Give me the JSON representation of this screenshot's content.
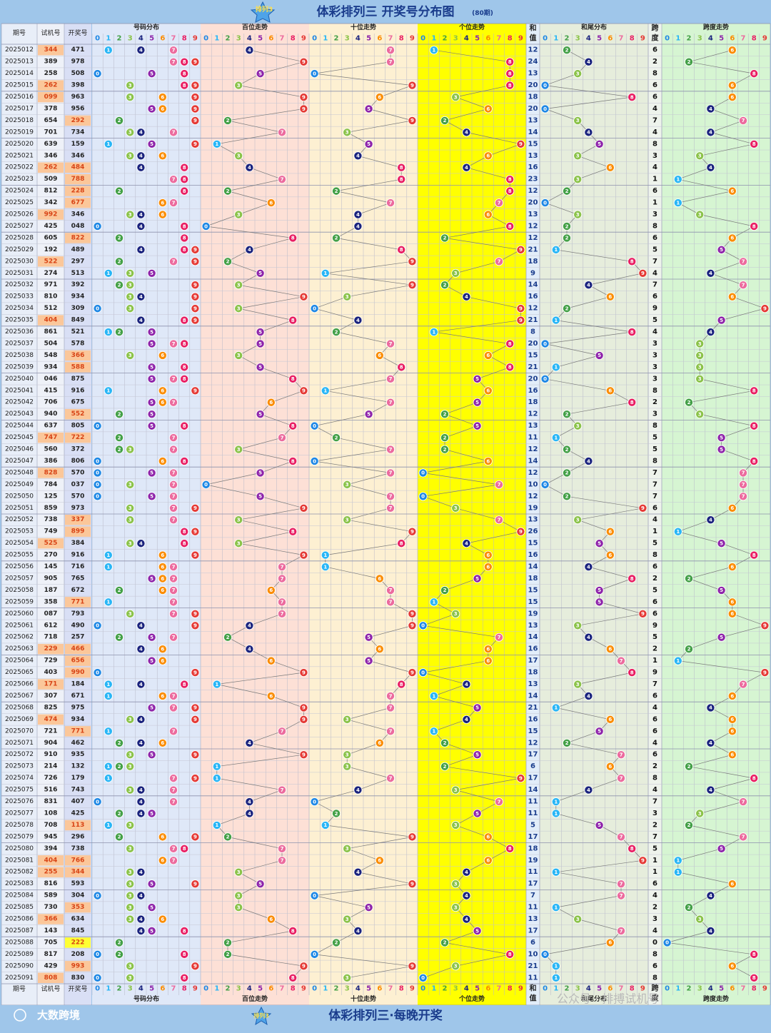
{
  "header": {
    "title": "体彩排列三 开奖号分布图",
    "period_note": "(80期)",
    "logo_text": "排列3"
  },
  "footer": {
    "title": "体彩排列三·每晚开奖",
    "brand": "大数跨境",
    "watermark": "公众号 · 排搏试机号"
  },
  "columns": {
    "issue": "期号",
    "trial": "试机号",
    "draw": "开奖号",
    "sections": [
      "号码分布",
      "百位走势",
      "十位走势",
      "个位走势",
      "和值",
      "和尾分布",
      "跨度",
      "跨度走势"
    ],
    "sum_label_top": "和",
    "sum_label_bottom": "值",
    "span_label_top": "跨",
    "span_label_bottom": "度",
    "digits": [
      "0",
      "1",
      "2",
      "3",
      "4",
      "5",
      "6",
      "7",
      "8",
      "9"
    ]
  },
  "colors": {
    "bg_outer": "#9fc6ea",
    "dist_bg": "#dfe8f8",
    "hund_bg": "#fde0d6",
    "tens_bg": "#fdf0d2",
    "ones_bg": "#ffff00",
    "sum_bg": "#e2edf9",
    "tail_bg": "#e6eddc",
    "spanwalk_bg": "#d6f5d2",
    "trial_hi": "#fbc79a",
    "draw_hi": "#fbc79a",
    "draw_repeat": "#ffff33",
    "ball_colors": [
      "#1e88e5",
      "#29b6f6",
      "#43a047",
      "#8bc34a",
      "#1a237e",
      "#8e24aa",
      "#fb8c00",
      "#ec6b9e",
      "#e91e63",
      "#e53935"
    ]
  },
  "chart_data": {
    "type": "table",
    "rows": [
      {
        "issue": "2025012",
        "trial": "344",
        "draw": "471",
        "trial_hi": true,
        "draw_hi": false,
        "sum": 12,
        "span": 6
      },
      {
        "issue": "2025013",
        "trial": "389",
        "draw": "978",
        "trial_hi": false,
        "draw_hi": false,
        "sum": 24,
        "span": 2
      },
      {
        "issue": "2025014",
        "trial": "258",
        "draw": "508",
        "trial_hi": false,
        "draw_hi": false,
        "sum": 13,
        "span": 8
      },
      {
        "issue": "2025015",
        "trial": "262",
        "draw": "398",
        "trial_hi": true,
        "draw_hi": false,
        "sum": 20,
        "span": 6
      },
      {
        "issue": "2025016",
        "trial": "099",
        "draw": "963",
        "trial_hi": true,
        "draw_hi": false,
        "sum": 18,
        "span": 6
      },
      {
        "issue": "2025017",
        "trial": "378",
        "draw": "956",
        "trial_hi": false,
        "draw_hi": false,
        "sum": 20,
        "span": 4
      },
      {
        "issue": "2025018",
        "trial": "654",
        "draw": "292",
        "trial_hi": false,
        "draw_hi": true,
        "sum": 13,
        "span": 7
      },
      {
        "issue": "2025019",
        "trial": "701",
        "draw": "734",
        "trial_hi": false,
        "draw_hi": false,
        "sum": 14,
        "span": 4
      },
      {
        "issue": "2025020",
        "trial": "639",
        "draw": "159",
        "trial_hi": false,
        "draw_hi": false,
        "sum": 15,
        "span": 8
      },
      {
        "issue": "2025021",
        "trial": "346",
        "draw": "346",
        "trial_hi": false,
        "draw_hi": false,
        "sum": 13,
        "span": 3
      },
      {
        "issue": "2025022",
        "trial": "262",
        "draw": "484",
        "trial_hi": true,
        "draw_hi": true,
        "sum": 16,
        "span": 4
      },
      {
        "issue": "2025023",
        "trial": "509",
        "draw": "788",
        "trial_hi": false,
        "draw_hi": true,
        "sum": 23,
        "span": 1
      },
      {
        "issue": "2025024",
        "trial": "812",
        "draw": "228",
        "trial_hi": false,
        "draw_hi": true,
        "sum": 12,
        "span": 6
      },
      {
        "issue": "2025025",
        "trial": "342",
        "draw": "677",
        "trial_hi": false,
        "draw_hi": true,
        "sum": 20,
        "span": 1
      },
      {
        "issue": "2025026",
        "trial": "992",
        "draw": "346",
        "trial_hi": true,
        "draw_hi": false,
        "sum": 13,
        "span": 3
      },
      {
        "issue": "2025027",
        "trial": "425",
        "draw": "048",
        "trial_hi": false,
        "draw_hi": false,
        "sum": 12,
        "span": 8
      },
      {
        "issue": "2025028",
        "trial": "605",
        "draw": "822",
        "trial_hi": false,
        "draw_hi": true,
        "sum": 12,
        "span": 6
      },
      {
        "issue": "2025029",
        "trial": "192",
        "draw": "489",
        "trial_hi": false,
        "draw_hi": false,
        "sum": 21,
        "span": 5
      },
      {
        "issue": "2025030",
        "trial": "522",
        "draw": "297",
        "trial_hi": true,
        "draw_hi": false,
        "sum": 18,
        "span": 7
      },
      {
        "issue": "2025031",
        "trial": "274",
        "draw": "513",
        "trial_hi": false,
        "draw_hi": false,
        "sum": 9,
        "span": 4
      },
      {
        "issue": "2025032",
        "trial": "971",
        "draw": "392",
        "trial_hi": false,
        "draw_hi": false,
        "sum": 14,
        "span": 7
      },
      {
        "issue": "2025033",
        "trial": "810",
        "draw": "934",
        "trial_hi": false,
        "draw_hi": false,
        "sum": 16,
        "span": 6
      },
      {
        "issue": "2025034",
        "trial": "512",
        "draw": "309",
        "trial_hi": false,
        "draw_hi": false,
        "sum": 12,
        "span": 9
      },
      {
        "issue": "2025035",
        "trial": "404",
        "draw": "849",
        "trial_hi": true,
        "draw_hi": false,
        "sum": 21,
        "span": 5
      },
      {
        "issue": "2025036",
        "trial": "861",
        "draw": "521",
        "trial_hi": false,
        "draw_hi": false,
        "sum": 8,
        "span": 4
      },
      {
        "issue": "2025037",
        "trial": "504",
        "draw": "578",
        "trial_hi": false,
        "draw_hi": false,
        "sum": 20,
        "span": 3
      },
      {
        "issue": "2025038",
        "trial": "548",
        "draw": "366",
        "trial_hi": false,
        "draw_hi": true,
        "sum": 15,
        "span": 3
      },
      {
        "issue": "2025039",
        "trial": "934",
        "draw": "588",
        "trial_hi": false,
        "draw_hi": true,
        "sum": 21,
        "span": 3
      },
      {
        "issue": "2025040",
        "trial": "046",
        "draw": "875",
        "trial_hi": false,
        "draw_hi": false,
        "sum": 20,
        "span": 3
      },
      {
        "issue": "2025041",
        "trial": "415",
        "draw": "916",
        "trial_hi": false,
        "draw_hi": false,
        "sum": 16,
        "span": 8
      },
      {
        "issue": "2025042",
        "trial": "706",
        "draw": "675",
        "trial_hi": false,
        "draw_hi": false,
        "sum": 18,
        "span": 2
      },
      {
        "issue": "2025043",
        "trial": "940",
        "draw": "552",
        "trial_hi": false,
        "draw_hi": true,
        "sum": 12,
        "span": 3
      },
      {
        "issue": "2025044",
        "trial": "637",
        "draw": "805",
        "trial_hi": false,
        "draw_hi": false,
        "sum": 13,
        "span": 8
      },
      {
        "issue": "2025045",
        "trial": "747",
        "draw": "722",
        "trial_hi": true,
        "draw_hi": true,
        "sum": 11,
        "span": 5
      },
      {
        "issue": "2025046",
        "trial": "560",
        "draw": "372",
        "trial_hi": false,
        "draw_hi": false,
        "sum": 12,
        "span": 5
      },
      {
        "issue": "2025047",
        "trial": "386",
        "draw": "806",
        "trial_hi": false,
        "draw_hi": false,
        "sum": 14,
        "span": 8
      },
      {
        "issue": "2025048",
        "trial": "828",
        "draw": "570",
        "trial_hi": true,
        "draw_hi": false,
        "sum": 12,
        "span": 7
      },
      {
        "issue": "2025049",
        "trial": "784",
        "draw": "037",
        "trial_hi": false,
        "draw_hi": false,
        "sum": 10,
        "span": 7
      },
      {
        "issue": "2025050",
        "trial": "125",
        "draw": "570",
        "trial_hi": false,
        "draw_hi": false,
        "sum": 12,
        "span": 7
      },
      {
        "issue": "2025051",
        "trial": "859",
        "draw": "973",
        "trial_hi": false,
        "draw_hi": false,
        "sum": 19,
        "span": 6
      },
      {
        "issue": "2025052",
        "trial": "738",
        "draw": "337",
        "trial_hi": false,
        "draw_hi": true,
        "sum": 13,
        "span": 4
      },
      {
        "issue": "2025053",
        "trial": "749",
        "draw": "899",
        "trial_hi": false,
        "draw_hi": true,
        "sum": 26,
        "span": 1
      },
      {
        "issue": "2025054",
        "trial": "525",
        "draw": "384",
        "trial_hi": true,
        "draw_hi": false,
        "sum": 15,
        "span": 5
      },
      {
        "issue": "2025055",
        "trial": "270",
        "draw": "916",
        "trial_hi": false,
        "draw_hi": false,
        "sum": 16,
        "span": 8
      },
      {
        "issue": "2025056",
        "trial": "145",
        "draw": "716",
        "trial_hi": false,
        "draw_hi": false,
        "sum": 14,
        "span": 6
      },
      {
        "issue": "2025057",
        "trial": "905",
        "draw": "765",
        "trial_hi": false,
        "draw_hi": false,
        "sum": 18,
        "span": 2
      },
      {
        "issue": "2025058",
        "trial": "187",
        "draw": "672",
        "trial_hi": false,
        "draw_hi": false,
        "sum": 15,
        "span": 5
      },
      {
        "issue": "2025059",
        "trial": "358",
        "draw": "771",
        "trial_hi": false,
        "draw_hi": true,
        "sum": 15,
        "span": 6
      },
      {
        "issue": "2025060",
        "trial": "087",
        "draw": "793",
        "trial_hi": false,
        "draw_hi": false,
        "sum": 19,
        "span": 6
      },
      {
        "issue": "2025061",
        "trial": "612",
        "draw": "490",
        "trial_hi": false,
        "draw_hi": false,
        "sum": 13,
        "span": 9
      },
      {
        "issue": "2025062",
        "trial": "718",
        "draw": "257",
        "trial_hi": false,
        "draw_hi": false,
        "sum": 14,
        "span": 5
      },
      {
        "issue": "2025063",
        "trial": "229",
        "draw": "466",
        "trial_hi": true,
        "draw_hi": true,
        "sum": 16,
        "span": 2
      },
      {
        "issue": "2025064",
        "trial": "729",
        "draw": "656",
        "trial_hi": false,
        "draw_hi": true,
        "sum": 17,
        "span": 1
      },
      {
        "issue": "2025065",
        "trial": "403",
        "draw": "990",
        "trial_hi": false,
        "draw_hi": true,
        "sum": 18,
        "span": 9
      },
      {
        "issue": "2025066",
        "trial": "171",
        "draw": "184",
        "trial_hi": true,
        "draw_hi": false,
        "sum": 13,
        "span": 7
      },
      {
        "issue": "2025067",
        "trial": "307",
        "draw": "671",
        "trial_hi": false,
        "draw_hi": false,
        "sum": 14,
        "span": 6
      },
      {
        "issue": "2025068",
        "trial": "825",
        "draw": "975",
        "trial_hi": false,
        "draw_hi": false,
        "sum": 21,
        "span": 4
      },
      {
        "issue": "2025069",
        "trial": "474",
        "draw": "934",
        "trial_hi": true,
        "draw_hi": false,
        "sum": 16,
        "span": 6
      },
      {
        "issue": "2025070",
        "trial": "721",
        "draw": "771",
        "trial_hi": false,
        "draw_hi": true,
        "sum": 15,
        "span": 6
      },
      {
        "issue": "2025071",
        "trial": "904",
        "draw": "462",
        "trial_hi": false,
        "draw_hi": false,
        "sum": 12,
        "span": 4
      },
      {
        "issue": "2025072",
        "trial": "910",
        "draw": "935",
        "trial_hi": false,
        "draw_hi": false,
        "sum": 17,
        "span": 6
      },
      {
        "issue": "2025073",
        "trial": "214",
        "draw": "132",
        "trial_hi": false,
        "draw_hi": false,
        "sum": 6,
        "span": 2
      },
      {
        "issue": "2025074",
        "trial": "726",
        "draw": "179",
        "trial_hi": false,
        "draw_hi": false,
        "sum": 17,
        "span": 8
      },
      {
        "issue": "2025075",
        "trial": "516",
        "draw": "743",
        "trial_hi": false,
        "draw_hi": false,
        "sum": 14,
        "span": 4
      },
      {
        "issue": "2025076",
        "trial": "831",
        "draw": "407",
        "trial_hi": false,
        "draw_hi": false,
        "sum": 11,
        "span": 7
      },
      {
        "issue": "2025077",
        "trial": "108",
        "draw": "425",
        "trial_hi": false,
        "draw_hi": false,
        "sum": 11,
        "span": 3
      },
      {
        "issue": "2025078",
        "trial": "708",
        "draw": "113",
        "trial_hi": false,
        "draw_hi": true,
        "sum": 5,
        "span": 2
      },
      {
        "issue": "2025079",
        "trial": "945",
        "draw": "296",
        "trial_hi": false,
        "draw_hi": false,
        "sum": 17,
        "span": 7
      },
      {
        "issue": "2025080",
        "trial": "394",
        "draw": "738",
        "trial_hi": false,
        "draw_hi": false,
        "sum": 18,
        "span": 5
      },
      {
        "issue": "2025081",
        "trial": "404",
        "draw": "766",
        "trial_hi": true,
        "draw_hi": true,
        "sum": 19,
        "span": 1
      },
      {
        "issue": "2025082",
        "trial": "255",
        "draw": "344",
        "trial_hi": true,
        "draw_hi": true,
        "sum": 11,
        "span": 1
      },
      {
        "issue": "2025083",
        "trial": "816",
        "draw": "593",
        "trial_hi": false,
        "draw_hi": false,
        "sum": 17,
        "span": 6
      },
      {
        "issue": "2025084",
        "trial": "589",
        "draw": "304",
        "trial_hi": false,
        "draw_hi": false,
        "sum": 7,
        "span": 4
      },
      {
        "issue": "2025085",
        "trial": "730",
        "draw": "353",
        "trial_hi": false,
        "draw_hi": true,
        "sum": 11,
        "span": 2
      },
      {
        "issue": "2025086",
        "trial": "366",
        "draw": "634",
        "trial_hi": true,
        "draw_hi": false,
        "sum": 13,
        "span": 3
      },
      {
        "issue": "2025087",
        "trial": "143",
        "draw": "845",
        "trial_hi": false,
        "draw_hi": false,
        "sum": 17,
        "span": 4
      },
      {
        "issue": "2025088",
        "trial": "705",
        "draw": "222",
        "trial_hi": false,
        "draw_hi": "repeat",
        "sum": 6,
        "span": 0
      },
      {
        "issue": "2025089",
        "trial": "817",
        "draw": "208",
        "trial_hi": false,
        "draw_hi": false,
        "sum": 10,
        "span": 8
      },
      {
        "issue": "2025090",
        "trial": "429",
        "draw": "993",
        "trial_hi": false,
        "draw_hi": true,
        "sum": 21,
        "span": 6
      },
      {
        "issue": "2025091",
        "trial": "808",
        "draw": "830",
        "trial_hi": true,
        "draw_hi": false,
        "sum": 11,
        "span": 8
      }
    ]
  }
}
